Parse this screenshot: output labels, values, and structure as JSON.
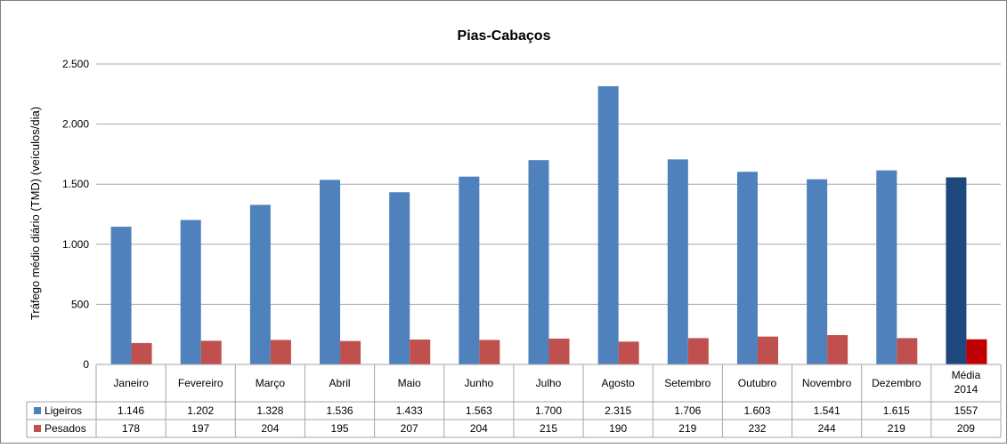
{
  "chart_data": {
    "type": "bar",
    "title": "Pias-Cabaços",
    "ylabel": "Tráfego médio diário (TMD) (veículos/dia)",
    "xlabel": "",
    "ylim": [
      0,
      2500
    ],
    "yticks": [
      0,
      500,
      1000,
      1500,
      2000,
      2500
    ],
    "ytick_labels": [
      "0",
      "500",
      "1.000",
      "1.500",
      "2.000",
      "2.500"
    ],
    "grid": true,
    "legend": "table-below",
    "categories": [
      "Janeiro",
      "Fevereiro",
      "Março",
      "Abril",
      "Maio",
      "Junho",
      "Julho",
      "Agosto",
      "Setembro",
      "Outubro",
      "Novembro",
      "Dezembro",
      "Média 2014"
    ],
    "series": [
      {
        "name": "Ligeiros",
        "color": "#4F81BD",
        "highlight_color": "#1F497D",
        "values": [
          1146,
          1202,
          1328,
          1536,
          1433,
          1563,
          1700,
          2315,
          1706,
          1603,
          1541,
          1615,
          1557
        ],
        "labels": [
          "1.146",
          "1.202",
          "1.328",
          "1.536",
          "1.433",
          "1.563",
          "1.700",
          "2.315",
          "1.706",
          "1.603",
          "1.541",
          "1.615",
          "1557"
        ]
      },
      {
        "name": "Pesados",
        "color": "#C0504D",
        "highlight_color": "#C00000",
        "values": [
          178,
          197,
          204,
          195,
          207,
          204,
          215,
          190,
          219,
          232,
          244,
          219,
          209
        ],
        "labels": [
          "178",
          "197",
          "204",
          "195",
          "207",
          "204",
          "215",
          "190",
          "219",
          "232",
          "244",
          "219",
          "209"
        ]
      }
    ]
  }
}
